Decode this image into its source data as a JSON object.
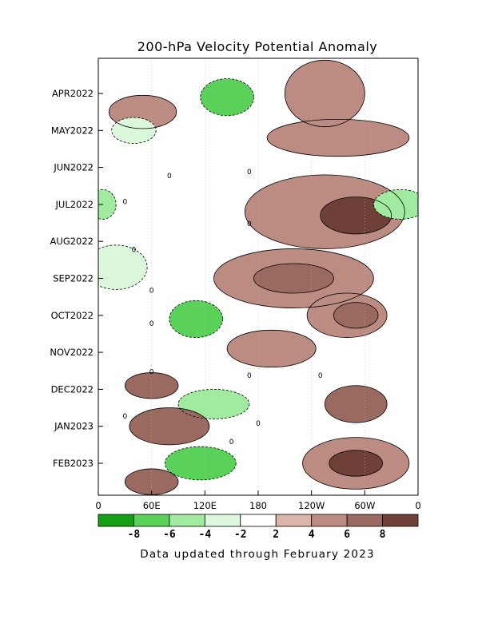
{
  "chart_data": {
    "type": "heatmap",
    "title": "200-hPa Velocity Potential Anomaly",
    "footer": "Data updated through February 2023",
    "x_ticks": [
      "0",
      "60E",
      "120E",
      "180",
      "120W",
      "60W",
      "0"
    ],
    "y_ticks": [
      "APR2022",
      "MAY2022",
      "JUN2022",
      "JUL2022",
      "AUG2022",
      "SEP2022",
      "OCT2022",
      "NOV2022",
      "DEC2022",
      "JAN2023",
      "FEB2023"
    ],
    "colorbar": {
      "labels": [
        "-8",
        "-6",
        "-4",
        "-2",
        "2",
        "4",
        "6",
        "8"
      ],
      "colors": [
        "#14a014",
        "#5ad25a",
        "#a0eba0",
        "#dcf8dc",
        "#ffffff",
        "#dcb4aa",
        "#bc8c82",
        "#9a6a60",
        "#6e4038"
      ]
    },
    "contour_zero_label": "0",
    "regions": [
      {
        "lon": 50,
        "t": 0.5,
        "rx": 38,
        "ry": 0.45,
        "level": 6
      },
      {
        "lon": 145,
        "t": 0.1,
        "rx": 30,
        "ry": 0.5,
        "level": 1
      },
      {
        "lon": 255,
        "t": 0.0,
        "rx": 45,
        "ry": 0.9,
        "level": 6
      },
      {
        "lon": 40,
        "t": 1.0,
        "rx": 25,
        "ry": 0.35,
        "level": 3
      },
      {
        "lon": 270,
        "t": 1.2,
        "rx": 80,
        "ry": 0.5,
        "level": 6
      },
      {
        "lon": 255,
        "t": 3.2,
        "rx": 90,
        "ry": 1.0,
        "level": 6
      },
      {
        "lon": 290,
        "t": 3.3,
        "rx": 40,
        "ry": 0.5,
        "level": 8
      },
      {
        "lon": 340,
        "t": 3.0,
        "rx": 30,
        "ry": 0.4,
        "level": 2
      },
      {
        "lon": 20,
        "t": 4.7,
        "rx": 35,
        "ry": 0.6,
        "level": 3
      },
      {
        "lon": 220,
        "t": 5.0,
        "rx": 90,
        "ry": 0.8,
        "level": 6
      },
      {
        "lon": 220,
        "t": 5.0,
        "rx": 45,
        "ry": 0.4,
        "level": 7
      },
      {
        "lon": 280,
        "t": 6.0,
        "rx": 45,
        "ry": 0.6,
        "level": 6
      },
      {
        "lon": 290,
        "t": 6.0,
        "rx": 25,
        "ry": 0.35,
        "level": 7
      },
      {
        "lon": 110,
        "t": 6.1,
        "rx": 30,
        "ry": 0.5,
        "level": 1
      },
      {
        "lon": 195,
        "t": 6.9,
        "rx": 50,
        "ry": 0.5,
        "level": 6
      },
      {
        "lon": 60,
        "t": 7.9,
        "rx": 30,
        "ry": 0.35,
        "level": 7
      },
      {
        "lon": 130,
        "t": 8.4,
        "rx": 40,
        "ry": 0.4,
        "level": 2
      },
      {
        "lon": 290,
        "t": 8.4,
        "rx": 35,
        "ry": 0.5,
        "level": 7
      },
      {
        "lon": 80,
        "t": 9.0,
        "rx": 45,
        "ry": 0.5,
        "level": 7
      },
      {
        "lon": 290,
        "t": 10.0,
        "rx": 60,
        "ry": 0.7,
        "level": 6
      },
      {
        "lon": 290,
        "t": 10.0,
        "rx": 30,
        "ry": 0.35,
        "level": 8
      },
      {
        "lon": 115,
        "t": 10.0,
        "rx": 40,
        "ry": 0.45,
        "level": 1
      },
      {
        "lon": 60,
        "t": 10.5,
        "rx": 30,
        "ry": 0.35,
        "level": 7
      },
      {
        "lon": 5,
        "t": 3.0,
        "rx": 15,
        "ry": 0.4,
        "level": 2
      }
    ]
  }
}
